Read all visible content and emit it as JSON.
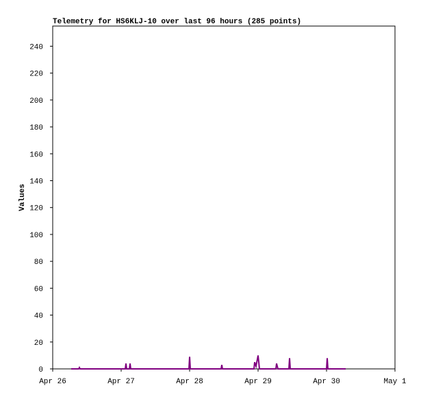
{
  "chart_data": {
    "type": "line",
    "title": "Telemetry for HS6KLJ-10 over last 96 hours (285 points)",
    "y_label": "Values",
    "x": [
      0.27,
      0.38,
      0.39,
      0.4,
      1.06,
      1.07,
      1.08,
      1.12,
      1.13,
      1.14,
      1.99,
      2.0,
      2.01,
      2.46,
      2.47,
      2.48,
      2.94,
      2.95,
      2.97,
      3.0,
      3.02,
      3.26,
      3.27,
      3.29,
      3.45,
      3.46,
      3.47,
      4.0,
      4.01,
      4.02,
      4.28
    ],
    "series": [
      {
        "color": "#800080",
        "values": [
          0,
          0,
          1,
          0,
          0,
          4,
          0,
          0,
          4,
          0,
          0,
          9,
          0,
          0,
          3,
          0,
          0,
          5,
          2,
          10,
          0,
          0,
          4,
          0,
          0,
          8,
          0,
          0,
          8,
          0,
          0
        ]
      }
    ],
    "xlim": [
      0,
      5
    ],
    "xticks": [
      {
        "value": 0,
        "label": "Apr 26"
      },
      {
        "value": 1,
        "label": "Apr 27"
      },
      {
        "value": 2,
        "label": "Apr 28"
      },
      {
        "value": 3,
        "label": "Apr 29"
      },
      {
        "value": 4,
        "label": "Apr 30"
      },
      {
        "value": 5,
        "label": "May 1"
      }
    ],
    "ylim": [
      0,
      255
    ],
    "yticks": [
      0,
      20,
      40,
      60,
      80,
      100,
      120,
      140,
      160,
      180,
      200,
      220,
      240
    ]
  }
}
